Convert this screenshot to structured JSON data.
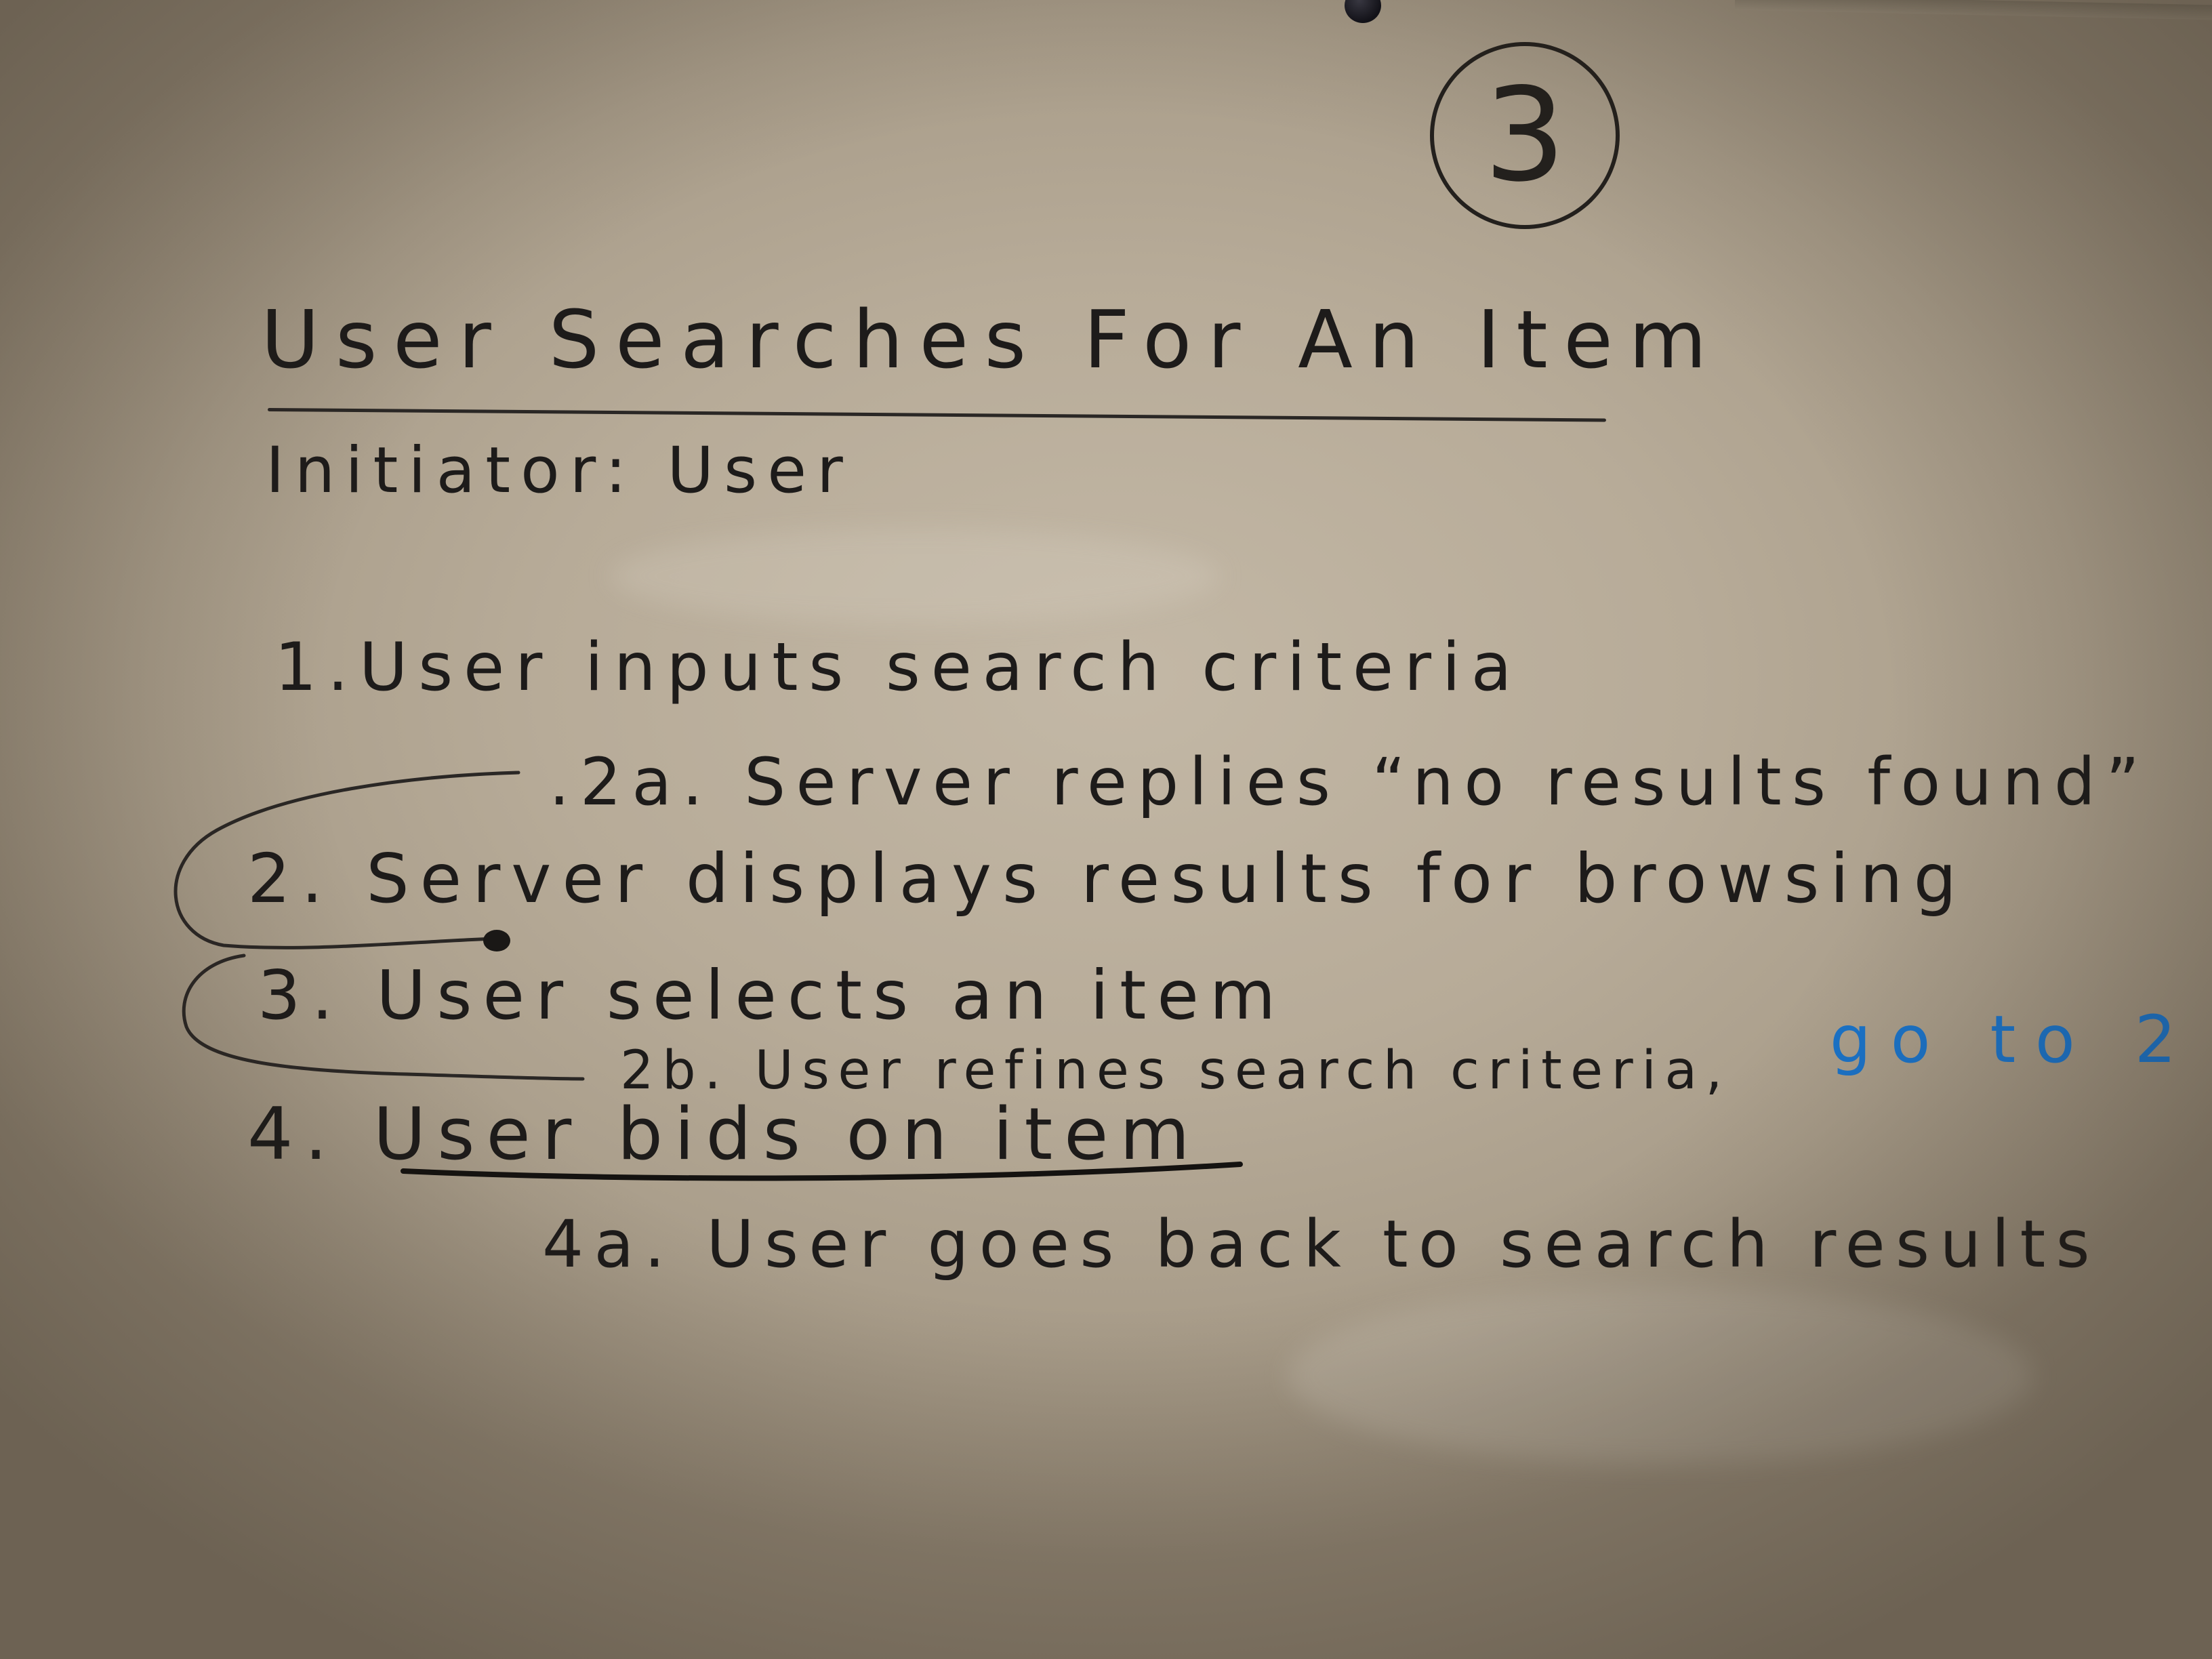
{
  "page_number": "3",
  "title": "User Searches For An Item",
  "initiator": "Initiator: User",
  "steps": {
    "s1": "1.User inputs search criteria",
    "s2a": ".2a. Server replies “no results found”",
    "s2": "2. Server displays results for browsing",
    "s3": "3. User selects an item",
    "s2b": "2b. User refines search criteria,",
    "s2b_goto": "go to 2",
    "s4": "4. User bids on item",
    "s4a": "4a. User goes back to search results"
  },
  "colors": {
    "board": "#b9ad9a",
    "ink_black": "#1d1b1a",
    "ink_blue": "#1a73c9"
  }
}
